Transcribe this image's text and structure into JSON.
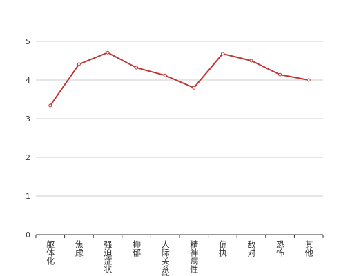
{
  "chart_data": {
    "type": "line",
    "categories": [
      "躯体化",
      "焦虑",
      "强迫症状",
      "抑郁",
      "人际关系敏感",
      "精神病性",
      "偏执",
      "敌对",
      "恐怖",
      "其他"
    ],
    "series": [
      {
        "color": "#c23531",
        "values": [
          3.34,
          4.41,
          4.71,
          4.32,
          4.12,
          3.8,
          4.68,
          4.5,
          4.14,
          4.0
        ]
      }
    ],
    "ylim": [
      0,
      5
    ],
    "yticks": [
      0,
      1,
      2,
      3,
      4,
      5
    ],
    "grid": true
  }
}
